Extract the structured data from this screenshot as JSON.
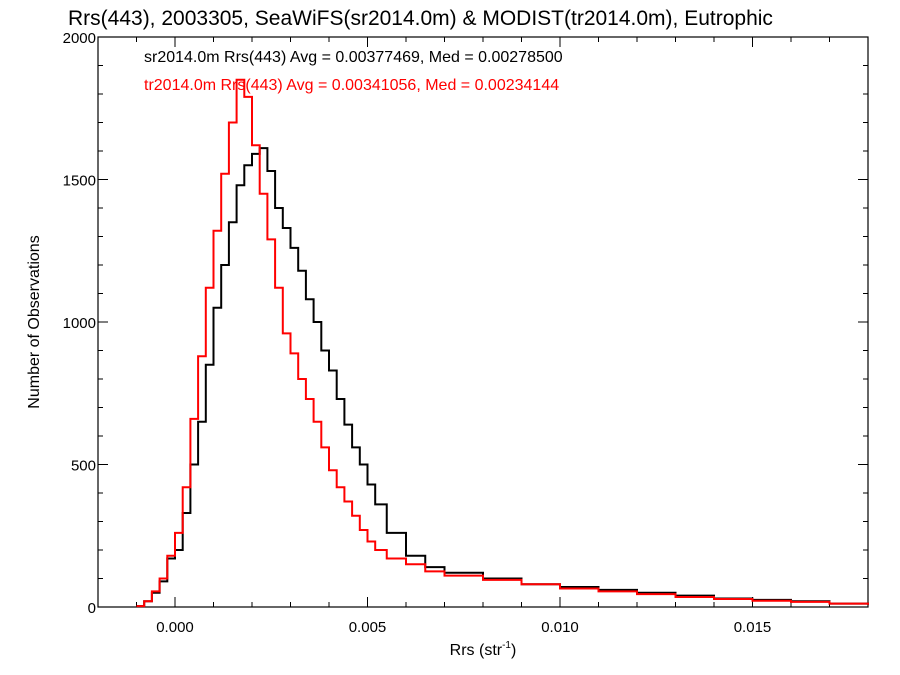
{
  "chart_data": {
    "type": "line",
    "title": "Rrs(443), 2003305, SeaWiFS(sr2014.0m) & MODIST(tr2014.0m), Eutrophic",
    "xlabel": "Rrs (str",
    "xlabel_sup": "-1",
    "xlabel_tail": ")",
    "ylabel": "Number of Observations",
    "xlim": [
      -0.002,
      0.018
    ],
    "ylim": [
      0,
      2000
    ],
    "x_ticks": [
      0.0,
      0.005,
      0.01,
      0.015
    ],
    "x_tick_labels": [
      "0.000",
      "0.005",
      "0.010",
      "0.015"
    ],
    "y_ticks": [
      0,
      500,
      1000,
      1500,
      2000
    ],
    "y_tick_labels": [
      "0",
      "500",
      "1000",
      "1500",
      "2000"
    ],
    "grid": false,
    "step": true,
    "series": [
      {
        "name": "sr2014.0m Rrs(443) Avg = 0.00377469, Med = 0.00278500",
        "color": "#000000",
        "x": [
          -0.001,
          -0.0008,
          -0.0006,
          -0.0004,
          -0.0002,
          0.0,
          0.0002,
          0.0004,
          0.0006,
          0.0008,
          0.001,
          0.0012,
          0.0014,
          0.0016,
          0.0018,
          0.002,
          0.0022,
          0.0024,
          0.0026,
          0.0028,
          0.003,
          0.0032,
          0.0034,
          0.0036,
          0.0038,
          0.004,
          0.0042,
          0.0044,
          0.0046,
          0.0048,
          0.005,
          0.0052,
          0.0055,
          0.006,
          0.0065,
          0.007,
          0.008,
          0.009,
          0.01,
          0.011,
          0.012,
          0.013,
          0.014,
          0.015,
          0.016,
          0.017,
          0.018
        ],
        "y": [
          3,
          20,
          50,
          90,
          170,
          200,
          330,
          500,
          650,
          850,
          1050,
          1200,
          1350,
          1480,
          1550,
          1590,
          1610,
          1530,
          1400,
          1330,
          1260,
          1180,
          1080,
          1000,
          900,
          830,
          730,
          640,
          560,
          500,
          430,
          360,
          260,
          180,
          140,
          120,
          100,
          80,
          70,
          60,
          50,
          40,
          30,
          25,
          20,
          12,
          8
        ]
      },
      {
        "name": "tr2014.0m Rrs(443) Avg = 0.00341056, Med = 0.00234144",
        "color": "#ff0000",
        "x": [
          -0.001,
          -0.0008,
          -0.0006,
          -0.0004,
          -0.0002,
          0.0,
          0.0002,
          0.0004,
          0.0006,
          0.0008,
          0.001,
          0.0012,
          0.0014,
          0.0016,
          0.0018,
          0.002,
          0.0022,
          0.0024,
          0.0026,
          0.0028,
          0.003,
          0.0032,
          0.0034,
          0.0036,
          0.0038,
          0.004,
          0.0042,
          0.0044,
          0.0046,
          0.0048,
          0.005,
          0.0052,
          0.0055,
          0.006,
          0.0065,
          0.007,
          0.008,
          0.009,
          0.01,
          0.011,
          0.012,
          0.013,
          0.014,
          0.015,
          0.016,
          0.017,
          0.018
        ],
        "y": [
          3,
          20,
          55,
          100,
          180,
          260,
          420,
          660,
          880,
          1120,
          1320,
          1520,
          1700,
          1850,
          1790,
          1620,
          1450,
          1290,
          1120,
          960,
          890,
          800,
          730,
          650,
          560,
          480,
          420,
          370,
          320,
          270,
          230,
          200,
          170,
          150,
          125,
          110,
          95,
          80,
          65,
          55,
          45,
          35,
          28,
          22,
          18,
          12,
          8
        ]
      }
    ]
  }
}
